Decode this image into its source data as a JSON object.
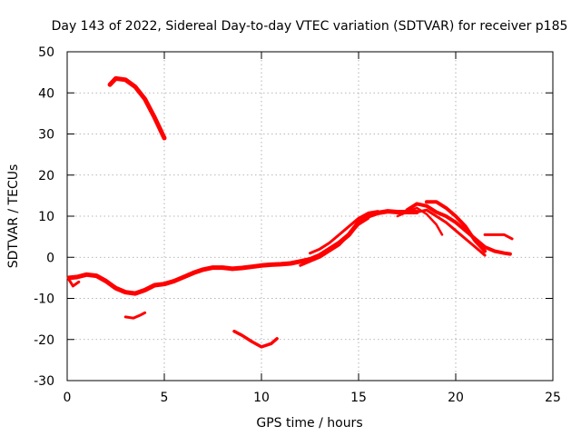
{
  "chart_data": {
    "type": "scatter",
    "title": "Day 143 of 2022, Sidereal Day-to-day VTEC variation (SDTVAR) for receiver p185",
    "xlabel": "GPS time / hours",
    "ylabel": "SDTVAR / TECUs",
    "xlim": [
      0,
      25
    ],
    "ylim": [
      -30,
      50
    ],
    "xticks": [
      0,
      5,
      10,
      15,
      20,
      25
    ],
    "yticks": [
      -30,
      -20,
      -10,
      0,
      10,
      20,
      30,
      40,
      50
    ],
    "grid": true,
    "color": "#ff0000",
    "series": [
      {
        "name": "main-trace",
        "x": [
          0.1,
          0.5,
          1.0,
          1.5,
          2.0,
          2.5,
          3.0,
          3.5,
          4.0,
          4.5,
          5.0,
          5.5,
          6.0,
          6.5,
          7.0,
          7.5,
          8.0,
          8.5,
          9.0,
          9.5,
          10.0,
          10.5,
          11.0,
          11.5,
          12.0,
          12.5,
          13.0,
          13.5,
          14.0,
          14.5,
          15.0,
          15.5,
          16.0,
          16.5,
          17.0,
          17.5,
          18.0
        ],
        "y": [
          -5,
          -4.8,
          -4.2,
          -4.5,
          -5.8,
          -7.5,
          -8.5,
          -8.8,
          -8.0,
          -6.8,
          -6.5,
          -5.8,
          -4.8,
          -3.8,
          -3.0,
          -2.5,
          -2.5,
          -2.8,
          -2.6,
          -2.3,
          -2.0,
          -1.8,
          -1.7,
          -1.5,
          -1.0,
          -0.5,
          0.5,
          2.0,
          3.5,
          5.5,
          8.5,
          10.0,
          10.8,
          11.2,
          11.0,
          11.0,
          11.0
        ],
        "width": 5
      },
      {
        "name": "trace-upper",
        "x": [
          12.5,
          13.0,
          13.5,
          14.0,
          14.5,
          15.0,
          15.5,
          16.0
        ],
        "y": [
          1.0,
          2.0,
          3.5,
          5.5,
          7.5,
          9.5,
          10.8,
          11.2
        ],
        "width": 3
      },
      {
        "name": "trace-lower",
        "x": [
          12.0,
          12.5,
          13.0,
          13.5,
          14.0,
          14.5,
          15.0,
          15.5
        ],
        "y": [
          -2.0,
          -1.0,
          0.0,
          1.5,
          3.0,
          5.5,
          8.0,
          9.5
        ],
        "width": 3
      },
      {
        "name": "trace-a",
        "x": [
          17.5,
          18.0,
          18.5,
          19.0,
          19.5,
          20.0,
          20.5,
          21.0,
          21.5,
          22.0,
          22.5,
          22.8
        ],
        "y": [
          11.5,
          13.0,
          12.5,
          11.0,
          10.0,
          8.5,
          6.5,
          4.5,
          2.5,
          1.5,
          1.0,
          0.8
        ],
        "width": 4
      },
      {
        "name": "trace-b",
        "x": [
          18.5,
          19.0,
          19.5,
          20.0,
          20.5,
          21.0,
          21.5
        ],
        "y": [
          13.5,
          13.5,
          12.0,
          10.0,
          7.5,
          4.0,
          1.5
        ],
        "width": 4
      },
      {
        "name": "trace-c",
        "x": [
          18.0,
          18.5,
          19.0,
          19.5,
          20.0,
          20.5,
          21.0,
          21.5
        ],
        "y": [
          11.0,
          11.5,
          10.0,
          8.5,
          6.5,
          4.5,
          2.5,
          0.5
        ],
        "width": 3
      },
      {
        "name": "trace-d",
        "x": [
          17.0,
          17.5,
          18.0,
          18.5,
          19.0,
          19.3
        ],
        "y": [
          10.0,
          11.0,
          12.0,
          10.5,
          8.0,
          5.5
        ],
        "width": 2.5
      },
      {
        "name": "trace-tail",
        "x": [
          21.5,
          22.0,
          22.5,
          22.9
        ],
        "y": [
          5.5,
          5.5,
          5.5,
          4.5
        ],
        "width": 3
      },
      {
        "name": "trace-start",
        "x": [
          0.1,
          0.3,
          0.6
        ],
        "y": [
          -5.5,
          -7.0,
          -6.0
        ],
        "width": 3
      },
      {
        "name": "arc-top",
        "x": [
          2.2,
          2.5,
          3.0,
          3.5,
          4.0,
          4.5,
          5.0
        ],
        "y": [
          42,
          43.5,
          43.2,
          41.5,
          38.5,
          34.0,
          29.0
        ],
        "width": 5
      },
      {
        "name": "seg-mid",
        "x": [
          3.0,
          3.4,
          3.8,
          4.0
        ],
        "y": [
          -14.5,
          -14.8,
          -14.0,
          -13.5
        ],
        "width": 3
      },
      {
        "name": "arc-bottom",
        "x": [
          8.6,
          9.0,
          9.5,
          10.0,
          10.5,
          10.8
        ],
        "y": [
          -18,
          -19,
          -20.5,
          -21.8,
          -21.0,
          -19.8
        ],
        "width": 3.5
      }
    ]
  }
}
